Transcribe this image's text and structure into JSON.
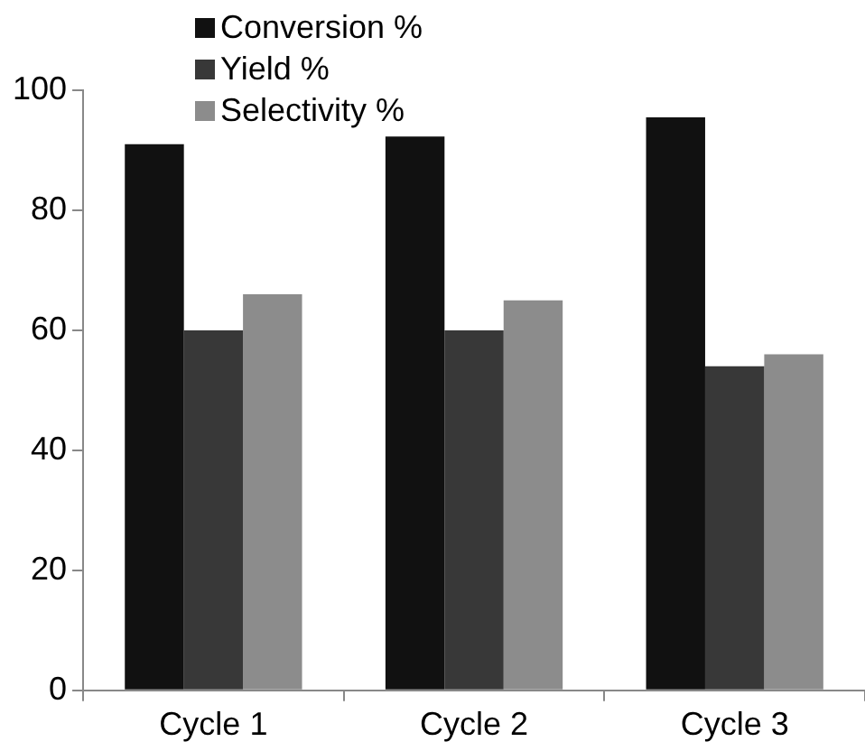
{
  "chart_data": {
    "type": "bar",
    "categories": [
      "Cycle 1",
      "Cycle 2",
      "Cycle 3"
    ],
    "series": [
      {
        "name": "Conversion %",
        "color": "#111111",
        "values": [
          91,
          92.3,
          95.5
        ]
      },
      {
        "name": "Yield %",
        "color": "#383838",
        "values": [
          60,
          60,
          54
        ]
      },
      {
        "name": "Selectivity %",
        "color": "#8c8c8c",
        "values": [
          66,
          65,
          56
        ]
      }
    ],
    "ylim": [
      0,
      100
    ],
    "yticks": [
      0,
      20,
      40,
      60,
      80,
      100
    ],
    "grid": false,
    "legend": "top"
  }
}
